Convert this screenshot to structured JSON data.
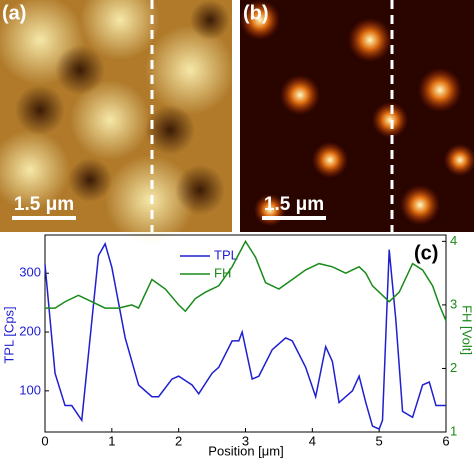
{
  "chart_data": {
    "type": "line",
    "panel_labels": [
      "(a)",
      "(b)",
      "(c)"
    ],
    "scale_bar_labels": [
      "1.5 μm",
      "1.5 μm"
    ],
    "xlabel": "Position [μm]",
    "ylabel": "TPL [Cps]",
    "y2label": "FH [Volt]",
    "xlim": [
      0,
      6
    ],
    "xticks": [
      0,
      1,
      2,
      3,
      4,
      5,
      6
    ],
    "ylim": [
      30,
      365
    ],
    "yticks": [
      100,
      200,
      300
    ],
    "y2lim": [
      1,
      4.1
    ],
    "y2ticks": [
      1,
      2,
      3,
      4
    ],
    "legend": "top-center",
    "series": [
      {
        "name": "TPL",
        "color": "#1f1fd0",
        "axis": "y",
        "x": [
          0,
          0.15,
          0.3,
          0.4,
          0.55,
          0.8,
          0.9,
          1.0,
          1.2,
          1.4,
          1.6,
          1.7,
          1.9,
          2.0,
          2.2,
          2.3,
          2.5,
          2.6,
          2.8,
          2.9,
          2.95,
          3.1,
          3.2,
          3.4,
          3.6,
          3.7,
          3.9,
          4.05,
          4.2,
          4.3,
          4.4,
          4.6,
          4.7,
          4.8,
          4.9,
          5.0,
          5.05,
          5.15,
          5.25,
          5.35,
          5.5,
          5.65,
          5.75,
          5.85,
          6.0
        ],
        "values": [
          315,
          130,
          75,
          75,
          50,
          330,
          350,
          310,
          190,
          110,
          90,
          90,
          120,
          125,
          110,
          95,
          130,
          140,
          185,
          185,
          200,
          120,
          125,
          170,
          190,
          185,
          140,
          90,
          175,
          150,
          80,
          100,
          125,
          80,
          40,
          35,
          50,
          340,
          220,
          65,
          55,
          110,
          115,
          75,
          75
        ]
      },
      {
        "name": "FH",
        "color": "#1a8a1a",
        "axis": "y2",
        "x": [
          0,
          0.15,
          0.3,
          0.5,
          0.7,
          0.9,
          1.1,
          1.3,
          1.4,
          1.6,
          1.8,
          2.0,
          2.1,
          2.25,
          2.4,
          2.6,
          2.8,
          3.0,
          3.15,
          3.3,
          3.5,
          3.7,
          3.9,
          4.1,
          4.3,
          4.5,
          4.6,
          4.7,
          4.8,
          4.9,
          5.0,
          5.15,
          5.3,
          5.5,
          5.65,
          5.8,
          5.9,
          6.0
        ],
        "values": [
          2.95,
          2.95,
          3.05,
          3.15,
          3.05,
          2.95,
          2.95,
          3.0,
          2.95,
          3.4,
          3.25,
          3.0,
          2.9,
          3.1,
          3.2,
          3.3,
          3.6,
          4.0,
          3.75,
          3.35,
          3.25,
          3.4,
          3.55,
          3.65,
          3.6,
          3.5,
          3.55,
          3.6,
          3.5,
          3.3,
          3.2,
          3.05,
          3.2,
          3.65,
          3.55,
          3.3,
          3.0,
          2.75
        ]
      }
    ]
  }
}
